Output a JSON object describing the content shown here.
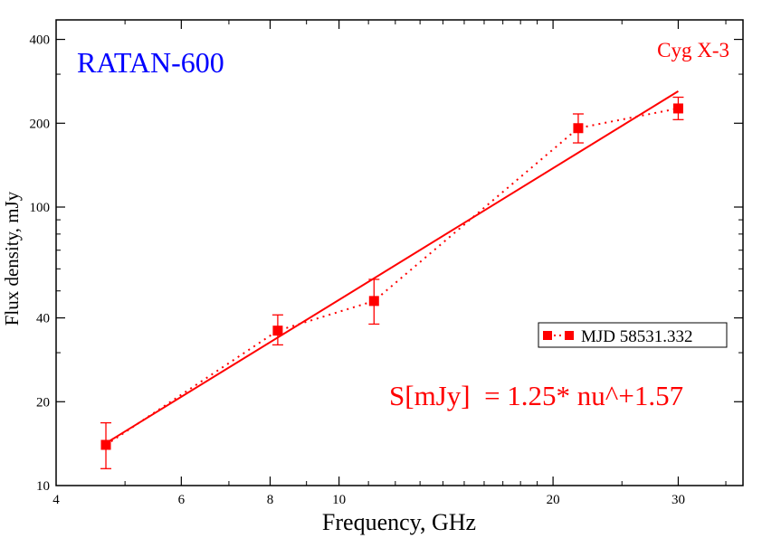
{
  "chart_data": {
    "type": "scatter",
    "title": "RATAN-600",
    "subtitle": "Cyg X-3",
    "xlabel": "Frequency, GHz",
    "ylabel": "Flux density, mJy",
    "xscale": "log",
    "yscale": "log",
    "xlim": [
      4,
      37
    ],
    "ylim": [
      10,
      470
    ],
    "xticks": [
      4,
      6,
      8,
      10,
      20,
      30
    ],
    "yticks": [
      10,
      20,
      40,
      100,
      200,
      400
    ],
    "legend_position": "right",
    "series": [
      {
        "name": "MJD 58531.332",
        "color": "#ff0000",
        "line_style": "dotted",
        "marker": "square",
        "x": [
          4.7,
          8.2,
          11.2,
          21.7,
          30.0
        ],
        "y": [
          14.0,
          36.0,
          46.0,
          192.0,
          226.0
        ],
        "err_low": [
          2.5,
          4.0,
          8.0,
          22.0,
          20.0
        ],
        "err_high": [
          2.8,
          5.0,
          9.0,
          24.0,
          22.0
        ]
      }
    ],
    "fit": {
      "label": "S[mJy]  = 1.25* nu^+1.57",
      "a": 1.25,
      "b": 1.57,
      "x_range": [
        4.7,
        30.0
      ],
      "color": "#ff0000"
    },
    "colors": {
      "title": "#0000ff",
      "data": "#ff0000"
    },
    "grid": false
  }
}
